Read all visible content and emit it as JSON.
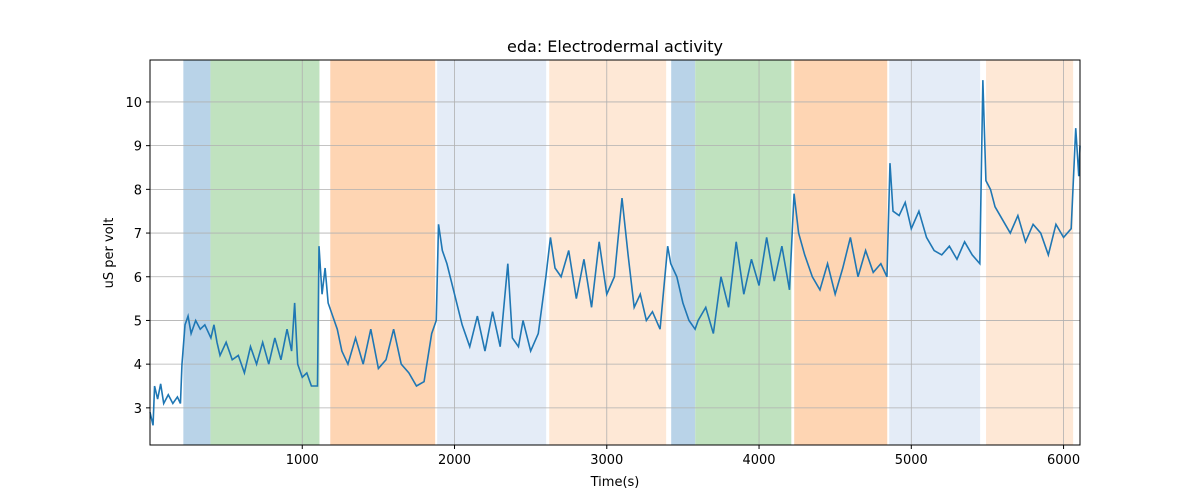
{
  "chart_data": {
    "type": "line",
    "title": "eda: Electrodermal activity",
    "xlabel": "Time(s)",
    "ylabel": "uS per volt",
    "xlim": [
      0,
      6108
    ],
    "ylim": [
      2.15,
      10.96
    ],
    "xticks": [
      1000,
      2000,
      3000,
      4000,
      5000,
      6000
    ],
    "yticks": [
      3,
      4,
      5,
      6,
      7,
      8,
      9,
      10
    ],
    "grid": true,
    "spans": [
      {
        "start": 219,
        "end": 397,
        "color": "#b9d3e8"
      },
      {
        "start": 397,
        "end": 1113,
        "color": "#c0e2bf"
      },
      {
        "start": 1184,
        "end": 1873,
        "color": "#fed5b3"
      },
      {
        "start": 1886,
        "end": 2602,
        "color": "#e4ecf7"
      },
      {
        "start": 2622,
        "end": 3390,
        "color": "#fee8d6"
      },
      {
        "start": 3423,
        "end": 3581,
        "color": "#b9d3e8"
      },
      {
        "start": 3581,
        "end": 4212,
        "color": "#c0e2bf"
      },
      {
        "start": 4231,
        "end": 4842,
        "color": "#fed5b3"
      },
      {
        "start": 4855,
        "end": 5452,
        "color": "#e4ecf7"
      },
      {
        "start": 5491,
        "end": 6063,
        "color": "#fee8d6"
      }
    ],
    "x": [
      0,
      20,
      30,
      50,
      70,
      90,
      120,
      150,
      180,
      200,
      210,
      230,
      250,
      270,
      300,
      330,
      360,
      400,
      420,
      440,
      460,
      500,
      540,
      580,
      620,
      660,
      700,
      740,
      780,
      820,
      860,
      900,
      930,
      950,
      970,
      1000,
      1030,
      1060,
      1100,
      1110,
      1130,
      1150,
      1170,
      1200,
      1230,
      1260,
      1300,
      1350,
      1400,
      1450,
      1500,
      1550,
      1600,
      1650,
      1700,
      1750,
      1800,
      1850,
      1880,
      1895,
      1920,
      1950,
      2000,
      2050,
      2100,
      2150,
      2200,
      2250,
      2300,
      2350,
      2380,
      2420,
      2450,
      2500,
      2550,
      2600,
      2630,
      2660,
      2700,
      2750,
      2800,
      2850,
      2900,
      2950,
      3000,
      3050,
      3100,
      3140,
      3180,
      3220,
      3260,
      3300,
      3350,
      3400,
      3420,
      3460,
      3500,
      3540,
      3580,
      3600,
      3650,
      3700,
      3750,
      3800,
      3850,
      3900,
      3950,
      4000,
      4050,
      4100,
      4150,
      4200,
      4230,
      4260,
      4300,
      4350,
      4400,
      4450,
      4500,
      4550,
      4600,
      4650,
      4700,
      4750,
      4800,
      4840,
      4860,
      4880,
      4920,
      4960,
      5000,
      5050,
      5100,
      5150,
      5200,
      5250,
      5300,
      5350,
      5400,
      5450,
      5470,
      5490,
      5520,
      5550,
      5600,
      5650,
      5700,
      5750,
      5800,
      5850,
      5900,
      5950,
      6000,
      6050,
      6080,
      6100,
      6108
    ],
    "series": [
      {
        "color": "#1f77b4",
        "values": [
          2.9,
          2.6,
          3.5,
          3.2,
          3.55,
          3.1,
          3.3,
          3.1,
          3.25,
          3.1,
          4.0,
          4.9,
          5.1,
          4.7,
          5.0,
          4.8,
          4.9,
          4.6,
          4.9,
          4.5,
          4.2,
          4.5,
          4.1,
          4.2,
          3.8,
          4.4,
          4.0,
          4.5,
          4.0,
          4.6,
          4.1,
          4.8,
          4.3,
          5.4,
          4.0,
          3.7,
          3.8,
          3.5,
          3.5,
          6.7,
          5.6,
          6.2,
          5.4,
          5.1,
          4.8,
          4.3,
          4.0,
          4.6,
          4.0,
          4.8,
          3.9,
          4.1,
          4.8,
          4.0,
          3.8,
          3.5,
          3.6,
          4.7,
          5.0,
          7.2,
          6.6,
          6.3,
          5.6,
          4.9,
          4.4,
          5.1,
          4.3,
          5.2,
          4.4,
          6.3,
          4.6,
          4.4,
          5.0,
          4.3,
          4.7,
          6.0,
          6.9,
          6.2,
          6.0,
          6.6,
          5.5,
          6.4,
          5.3,
          6.8,
          5.6,
          6.0,
          7.8,
          6.5,
          5.3,
          5.6,
          5.0,
          5.2,
          4.8,
          6.7,
          6.3,
          6.0,
          5.4,
          5.0,
          4.8,
          5.0,
          5.3,
          4.7,
          6.0,
          5.3,
          6.8,
          5.6,
          6.4,
          5.8,
          6.9,
          5.9,
          6.7,
          5.7,
          7.9,
          7.0,
          6.5,
          6.0,
          5.7,
          6.3,
          5.6,
          6.2,
          6.9,
          6.0,
          6.6,
          6.1,
          6.3,
          6.0,
          8.6,
          7.5,
          7.4,
          7.7,
          7.1,
          7.5,
          6.9,
          6.6,
          6.5,
          6.7,
          6.4,
          6.8,
          6.5,
          6.3,
          10.5,
          8.2,
          8.0,
          7.6,
          7.3,
          7.0,
          7.4,
          6.8,
          7.2,
          7.0,
          6.5,
          7.2,
          6.9,
          7.1,
          9.4,
          8.3,
          9.0
        ]
      }
    ]
  }
}
